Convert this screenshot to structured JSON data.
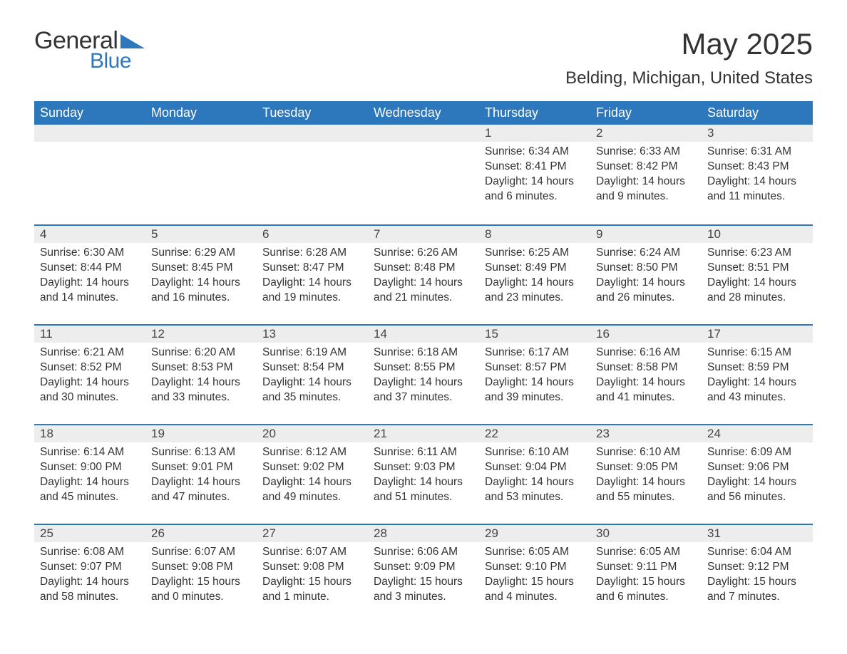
{
  "brand": {
    "general": "General",
    "blue": "Blue"
  },
  "title": "May 2025",
  "location": "Belding, Michigan, United States",
  "colors": {
    "header_bg": "#2d78bd",
    "header_text": "#ffffff",
    "daynum_bg": "#ededed",
    "rule": "#2d78bd",
    "text": "#333333",
    "background": "#ffffff"
  },
  "fonts": {
    "title_size_pt": 42,
    "location_size_pt": 24,
    "weekday_size_pt": 18,
    "daynum_size_pt": 17,
    "body_size_pt": 15.5
  },
  "weekdays": [
    "Sunday",
    "Monday",
    "Tuesday",
    "Wednesday",
    "Thursday",
    "Friday",
    "Saturday"
  ],
  "weeks": [
    [
      {
        "day": "",
        "sunrise": "",
        "sunset": "",
        "daylight": ""
      },
      {
        "day": "",
        "sunrise": "",
        "sunset": "",
        "daylight": ""
      },
      {
        "day": "",
        "sunrise": "",
        "sunset": "",
        "daylight": ""
      },
      {
        "day": "",
        "sunrise": "",
        "sunset": "",
        "daylight": ""
      },
      {
        "day": "1",
        "sunrise": "Sunrise: 6:34 AM",
        "sunset": "Sunset: 8:41 PM",
        "daylight": "Daylight: 14 hours and 6 minutes."
      },
      {
        "day": "2",
        "sunrise": "Sunrise: 6:33 AM",
        "sunset": "Sunset: 8:42 PM",
        "daylight": "Daylight: 14 hours and 9 minutes."
      },
      {
        "day": "3",
        "sunrise": "Sunrise: 6:31 AM",
        "sunset": "Sunset: 8:43 PM",
        "daylight": "Daylight: 14 hours and 11 minutes."
      }
    ],
    [
      {
        "day": "4",
        "sunrise": "Sunrise: 6:30 AM",
        "sunset": "Sunset: 8:44 PM",
        "daylight": "Daylight: 14 hours and 14 minutes."
      },
      {
        "day": "5",
        "sunrise": "Sunrise: 6:29 AM",
        "sunset": "Sunset: 8:45 PM",
        "daylight": "Daylight: 14 hours and 16 minutes."
      },
      {
        "day": "6",
        "sunrise": "Sunrise: 6:28 AM",
        "sunset": "Sunset: 8:47 PM",
        "daylight": "Daylight: 14 hours and 19 minutes."
      },
      {
        "day": "7",
        "sunrise": "Sunrise: 6:26 AM",
        "sunset": "Sunset: 8:48 PM",
        "daylight": "Daylight: 14 hours and 21 minutes."
      },
      {
        "day": "8",
        "sunrise": "Sunrise: 6:25 AM",
        "sunset": "Sunset: 8:49 PM",
        "daylight": "Daylight: 14 hours and 23 minutes."
      },
      {
        "day": "9",
        "sunrise": "Sunrise: 6:24 AM",
        "sunset": "Sunset: 8:50 PM",
        "daylight": "Daylight: 14 hours and 26 minutes."
      },
      {
        "day": "10",
        "sunrise": "Sunrise: 6:23 AM",
        "sunset": "Sunset: 8:51 PM",
        "daylight": "Daylight: 14 hours and 28 minutes."
      }
    ],
    [
      {
        "day": "11",
        "sunrise": "Sunrise: 6:21 AM",
        "sunset": "Sunset: 8:52 PM",
        "daylight": "Daylight: 14 hours and 30 minutes."
      },
      {
        "day": "12",
        "sunrise": "Sunrise: 6:20 AM",
        "sunset": "Sunset: 8:53 PM",
        "daylight": "Daylight: 14 hours and 33 minutes."
      },
      {
        "day": "13",
        "sunrise": "Sunrise: 6:19 AM",
        "sunset": "Sunset: 8:54 PM",
        "daylight": "Daylight: 14 hours and 35 minutes."
      },
      {
        "day": "14",
        "sunrise": "Sunrise: 6:18 AM",
        "sunset": "Sunset: 8:55 PM",
        "daylight": "Daylight: 14 hours and 37 minutes."
      },
      {
        "day": "15",
        "sunrise": "Sunrise: 6:17 AM",
        "sunset": "Sunset: 8:57 PM",
        "daylight": "Daylight: 14 hours and 39 minutes."
      },
      {
        "day": "16",
        "sunrise": "Sunrise: 6:16 AM",
        "sunset": "Sunset: 8:58 PM",
        "daylight": "Daylight: 14 hours and 41 minutes."
      },
      {
        "day": "17",
        "sunrise": "Sunrise: 6:15 AM",
        "sunset": "Sunset: 8:59 PM",
        "daylight": "Daylight: 14 hours and 43 minutes."
      }
    ],
    [
      {
        "day": "18",
        "sunrise": "Sunrise: 6:14 AM",
        "sunset": "Sunset: 9:00 PM",
        "daylight": "Daylight: 14 hours and 45 minutes."
      },
      {
        "day": "19",
        "sunrise": "Sunrise: 6:13 AM",
        "sunset": "Sunset: 9:01 PM",
        "daylight": "Daylight: 14 hours and 47 minutes."
      },
      {
        "day": "20",
        "sunrise": "Sunrise: 6:12 AM",
        "sunset": "Sunset: 9:02 PM",
        "daylight": "Daylight: 14 hours and 49 minutes."
      },
      {
        "day": "21",
        "sunrise": "Sunrise: 6:11 AM",
        "sunset": "Sunset: 9:03 PM",
        "daylight": "Daylight: 14 hours and 51 minutes."
      },
      {
        "day": "22",
        "sunrise": "Sunrise: 6:10 AM",
        "sunset": "Sunset: 9:04 PM",
        "daylight": "Daylight: 14 hours and 53 minutes."
      },
      {
        "day": "23",
        "sunrise": "Sunrise: 6:10 AM",
        "sunset": "Sunset: 9:05 PM",
        "daylight": "Daylight: 14 hours and 55 minutes."
      },
      {
        "day": "24",
        "sunrise": "Sunrise: 6:09 AM",
        "sunset": "Sunset: 9:06 PM",
        "daylight": "Daylight: 14 hours and 56 minutes."
      }
    ],
    [
      {
        "day": "25",
        "sunrise": "Sunrise: 6:08 AM",
        "sunset": "Sunset: 9:07 PM",
        "daylight": "Daylight: 14 hours and 58 minutes."
      },
      {
        "day": "26",
        "sunrise": "Sunrise: 6:07 AM",
        "sunset": "Sunset: 9:08 PM",
        "daylight": "Daylight: 15 hours and 0 minutes."
      },
      {
        "day": "27",
        "sunrise": "Sunrise: 6:07 AM",
        "sunset": "Sunset: 9:08 PM",
        "daylight": "Daylight: 15 hours and 1 minute."
      },
      {
        "day": "28",
        "sunrise": "Sunrise: 6:06 AM",
        "sunset": "Sunset: 9:09 PM",
        "daylight": "Daylight: 15 hours and 3 minutes."
      },
      {
        "day": "29",
        "sunrise": "Sunrise: 6:05 AM",
        "sunset": "Sunset: 9:10 PM",
        "daylight": "Daylight: 15 hours and 4 minutes."
      },
      {
        "day": "30",
        "sunrise": "Sunrise: 6:05 AM",
        "sunset": "Sunset: 9:11 PM",
        "daylight": "Daylight: 15 hours and 6 minutes."
      },
      {
        "day": "31",
        "sunrise": "Sunrise: 6:04 AM",
        "sunset": "Sunset: 9:12 PM",
        "daylight": "Daylight: 15 hours and 7 minutes."
      }
    ]
  ]
}
